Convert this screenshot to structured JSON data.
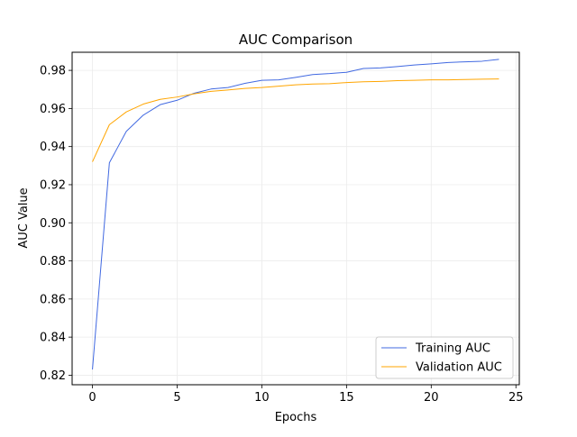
{
  "chart_data": {
    "type": "line",
    "title": "AUC Comparison",
    "xlabel": "Epochs",
    "ylabel": "AUC Value",
    "xlim": [
      -1.2,
      25.2
    ],
    "ylim": [
      0.815,
      0.9895
    ],
    "xticks": [
      0,
      5,
      10,
      15,
      20,
      25
    ],
    "yticks": [
      0.82,
      0.84,
      0.86,
      0.88,
      0.9,
      0.92,
      0.94,
      0.96,
      0.98
    ],
    "xtick_labels": [
      "0",
      "5",
      "10",
      "15",
      "20",
      "25"
    ],
    "ytick_labels": [
      "0.82",
      "0.84",
      "0.86",
      "0.88",
      "0.90",
      "0.92",
      "0.94",
      "0.96",
      "0.98"
    ],
    "grid": true,
    "legend_position": "lower-right",
    "x": [
      0,
      1,
      2,
      3,
      4,
      5,
      6,
      7,
      8,
      9,
      10,
      11,
      12,
      13,
      14,
      15,
      16,
      17,
      18,
      19,
      20,
      21,
      22,
      23,
      24
    ],
    "series": [
      {
        "name": "Training AUC",
        "color": "#4169e1",
        "values": [
          0.823,
          0.9315,
          0.948,
          0.9565,
          0.962,
          0.9643,
          0.968,
          0.9702,
          0.971,
          0.9732,
          0.9748,
          0.975,
          0.9763,
          0.9778,
          0.9783,
          0.979,
          0.981,
          0.9813,
          0.982,
          0.9828,
          0.9834,
          0.9841,
          0.9845,
          0.9848,
          0.9858
        ]
      },
      {
        "name": "Validation AUC",
        "color": "#ffa500",
        "values": [
          0.932,
          0.9515,
          0.9582,
          0.9623,
          0.9648,
          0.966,
          0.9677,
          0.969,
          0.9697,
          0.9705,
          0.971,
          0.9717,
          0.9724,
          0.9728,
          0.973,
          0.9736,
          0.974,
          0.9742,
          0.9746,
          0.9748,
          0.975,
          0.975,
          0.9752,
          0.9754,
          0.9755
        ]
      }
    ]
  }
}
